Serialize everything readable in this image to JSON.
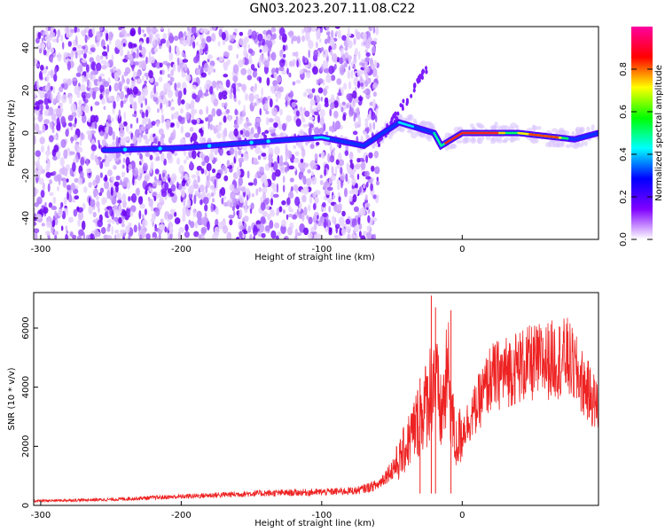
{
  "title": "GN03.2023.207.11.08.C22",
  "chart_data": [
    {
      "type": "heatmap",
      "xlabel": "Height of straight line (km)",
      "ylabel": "Frequency (Hz)",
      "xlim": [
        -305,
        97
      ],
      "ylim": [
        -50,
        50
      ],
      "xticks": [
        -300,
        -200,
        -100,
        0
      ],
      "yticks": [
        -40,
        -20,
        0,
        20,
        40
      ],
      "colorbar": {
        "label": "Normalized spectral amplitude",
        "range": [
          0,
          1
        ],
        "ticks": [
          0.0,
          0.2,
          0.4,
          0.6,
          0.8
        ],
        "tick_labels": [
          "0.0",
          "0.2",
          "0.4",
          "0.6",
          "0.8"
        ],
        "colors": [
          "#ffffff",
          "#8000ff",
          "#0000ff",
          "#00ffff",
          "#00ff00",
          "#ffff00",
          "#ff0000",
          "#ff00a0"
        ]
      },
      "ridge": [
        {
          "x": -250,
          "y": -8
        },
        {
          "x": -200,
          "y": -7
        },
        {
          "x": -140,
          "y": -4
        },
        {
          "x": -100,
          "y": -2
        },
        {
          "x": -70,
          "y": -6
        },
        {
          "x": -45,
          "y": 5
        },
        {
          "x": -20,
          "y": 0
        },
        {
          "x": -15,
          "y": -6
        },
        {
          "x": 0,
          "y": 0
        },
        {
          "x": 40,
          "y": 0
        },
        {
          "x": 80,
          "y": -3
        },
        {
          "x": 97,
          "y": 0
        }
      ],
      "grid": false
    },
    {
      "type": "line",
      "xlabel": "Height of straight line (km)",
      "ylabel": "SNR (10 * v/v)",
      "xlim": [
        -305,
        97
      ],
      "ylim": [
        0,
        7200
      ],
      "xticks": [
        -300,
        -200,
        -100,
        0
      ],
      "yticks": [
        0,
        2000,
        4000,
        6000
      ],
      "color": "#ee2222",
      "envelope": [
        {
          "x": -305,
          "y": 150
        },
        {
          "x": -250,
          "y": 200
        },
        {
          "x": -200,
          "y": 300
        },
        {
          "x": -150,
          "y": 400
        },
        {
          "x": -100,
          "y": 450
        },
        {
          "x": -75,
          "y": 500
        },
        {
          "x": -60,
          "y": 700
        },
        {
          "x": -45,
          "y": 1500
        },
        {
          "x": -35,
          "y": 2500
        },
        {
          "x": -25,
          "y": 3500
        },
        {
          "x": -20,
          "y": 4500
        },
        {
          "x": -15,
          "y": 3000
        },
        {
          "x": -10,
          "y": 4500
        },
        {
          "x": -5,
          "y": 2000
        },
        {
          "x": 0,
          "y": 2500
        },
        {
          "x": 10,
          "y": 3300
        },
        {
          "x": 20,
          "y": 4300
        },
        {
          "x": 40,
          "y": 4700
        },
        {
          "x": 60,
          "y": 4900
        },
        {
          "x": 75,
          "y": 5000
        },
        {
          "x": 85,
          "y": 4200
        },
        {
          "x": 97,
          "y": 3300
        }
      ],
      "spikes": [
        {
          "x": -22,
          "y": 7100
        },
        {
          "x": -19,
          "y": 6700
        },
        {
          "x": -8,
          "y": 6600
        },
        {
          "x": -30,
          "y": 4300
        }
      ],
      "grid": false
    }
  ]
}
